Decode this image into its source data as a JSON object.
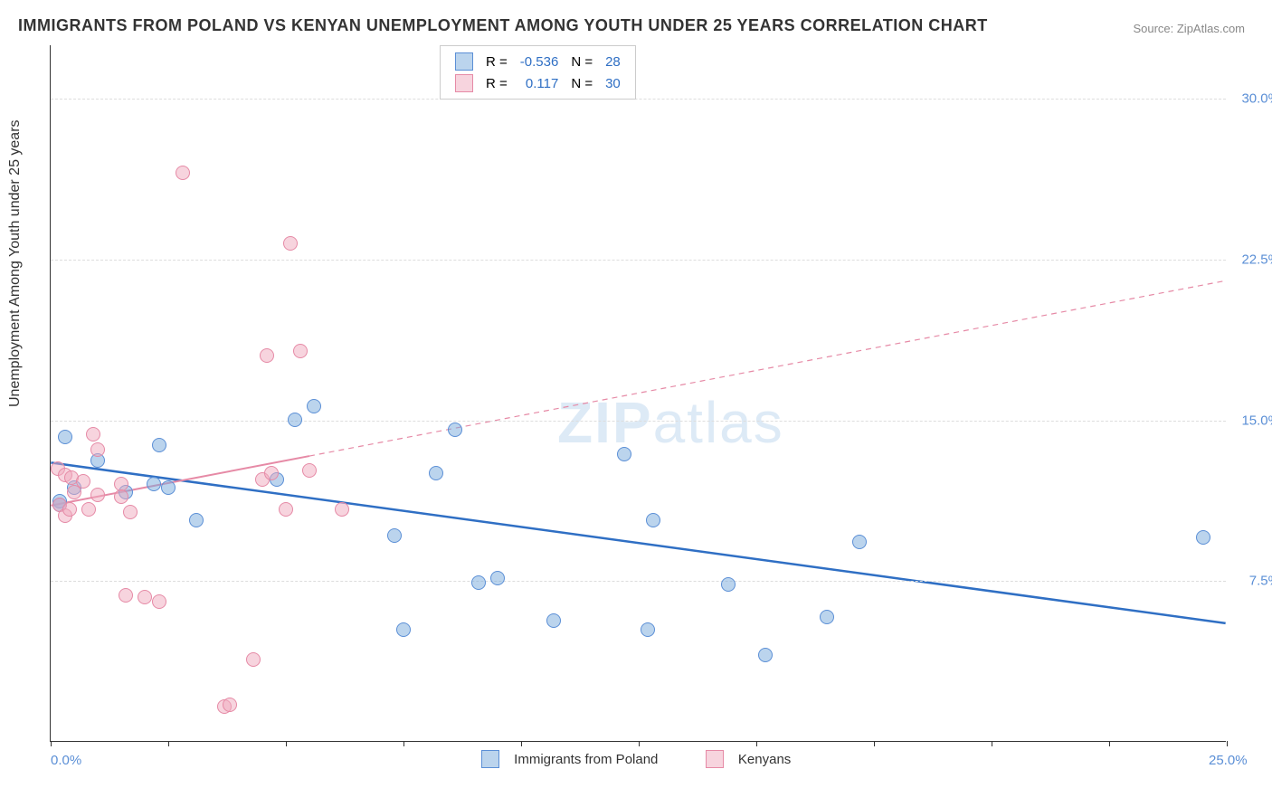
{
  "title": "IMMIGRANTS FROM POLAND VS KENYAN UNEMPLOYMENT AMONG YOUTH UNDER 25 YEARS CORRELATION CHART",
  "source": "Source: ZipAtlas.com",
  "ylabel": "Unemployment Among Youth under 25 years",
  "watermark_bold": "ZIP",
  "watermark_rest": "atlas",
  "chart": {
    "type": "scatter",
    "xlim": [
      0,
      25
    ],
    "ylim": [
      0,
      32.5
    ],
    "xtick_positions": [
      0,
      2.5,
      5,
      7.5,
      10,
      12.5,
      15,
      17.5,
      20,
      22.5,
      25
    ],
    "xtick_labels_shown": {
      "0": "0.0%",
      "25": "25.0%"
    },
    "ytick_positions": [
      7.5,
      15.0,
      22.5,
      30.0
    ],
    "ytick_labels": [
      "7.5%",
      "15.0%",
      "22.5%",
      "30.0%"
    ],
    "grid_color": "#dddddd",
    "background": "#ffffff",
    "series": [
      {
        "name": "Immigrants from Poland",
        "color_fill": "rgba(120,170,220,0.5)",
        "color_stroke": "#5b8fd6",
        "r_label": "R =",
        "r_value": "-0.536",
        "n_label": "N =",
        "n_value": "28",
        "trend": {
          "x1": 0,
          "y1": 13.0,
          "x2": 25,
          "y2": 5.5,
          "solid_until_x": 25,
          "stroke": "#2f6fc4",
          "width": 2.5
        },
        "points": [
          [
            0.2,
            11.2
          ],
          [
            0.2,
            11.0
          ],
          [
            0.3,
            14.2
          ],
          [
            0.5,
            11.8
          ],
          [
            1.0,
            13.1
          ],
          [
            1.6,
            11.6
          ],
          [
            2.2,
            12.0
          ],
          [
            2.3,
            13.8
          ],
          [
            2.5,
            11.8
          ],
          [
            3.1,
            10.3
          ],
          [
            4.8,
            12.2
          ],
          [
            5.2,
            15.0
          ],
          [
            5.6,
            15.6
          ],
          [
            7.3,
            9.6
          ],
          [
            7.5,
            5.2
          ],
          [
            8.2,
            12.5
          ],
          [
            8.6,
            14.5
          ],
          [
            9.1,
            7.4
          ],
          [
            9.5,
            7.6
          ],
          [
            10.7,
            5.6
          ],
          [
            12.2,
            13.4
          ],
          [
            12.7,
            5.2
          ],
          [
            12.8,
            10.3
          ],
          [
            14.4,
            7.3
          ],
          [
            15.2,
            4.0
          ],
          [
            16.5,
            5.8
          ],
          [
            17.2,
            9.3
          ],
          [
            24.5,
            9.5
          ]
        ]
      },
      {
        "name": "Kenyans",
        "color_fill": "rgba(240,170,190,0.5)",
        "color_stroke": "#e68aa6",
        "r_label": "R =",
        "r_value": "0.117",
        "n_label": "N =",
        "n_value": "30",
        "trend": {
          "x1": 0,
          "y1": 11.0,
          "x2": 25,
          "y2": 21.5,
          "solid_until_x": 5.5,
          "stroke": "#e68aa6",
          "width": 2
        },
        "points": [
          [
            0.15,
            12.7
          ],
          [
            0.2,
            11.0
          ],
          [
            0.3,
            10.5
          ],
          [
            0.3,
            12.4
          ],
          [
            0.4,
            10.8
          ],
          [
            0.45,
            12.3
          ],
          [
            0.5,
            11.6
          ],
          [
            0.7,
            12.1
          ],
          [
            0.8,
            10.8
          ],
          [
            0.9,
            14.3
          ],
          [
            1.0,
            11.5
          ],
          [
            1.0,
            13.6
          ],
          [
            1.5,
            12.0
          ],
          [
            1.5,
            11.4
          ],
          [
            1.6,
            6.8
          ],
          [
            1.7,
            10.7
          ],
          [
            2.0,
            6.7
          ],
          [
            2.3,
            6.5
          ],
          [
            2.8,
            26.5
          ],
          [
            3.7,
            1.6
          ],
          [
            3.8,
            1.7
          ],
          [
            4.3,
            3.8
          ],
          [
            4.5,
            12.2
          ],
          [
            4.6,
            18.0
          ],
          [
            4.7,
            12.5
          ],
          [
            5.0,
            10.8
          ],
          [
            5.1,
            23.2
          ],
          [
            5.3,
            18.2
          ],
          [
            5.5,
            12.6
          ],
          [
            6.2,
            10.8
          ]
        ]
      }
    ]
  },
  "legend_bottom": {
    "item1": "Immigrants from Poland",
    "item2": "Kenyans"
  }
}
